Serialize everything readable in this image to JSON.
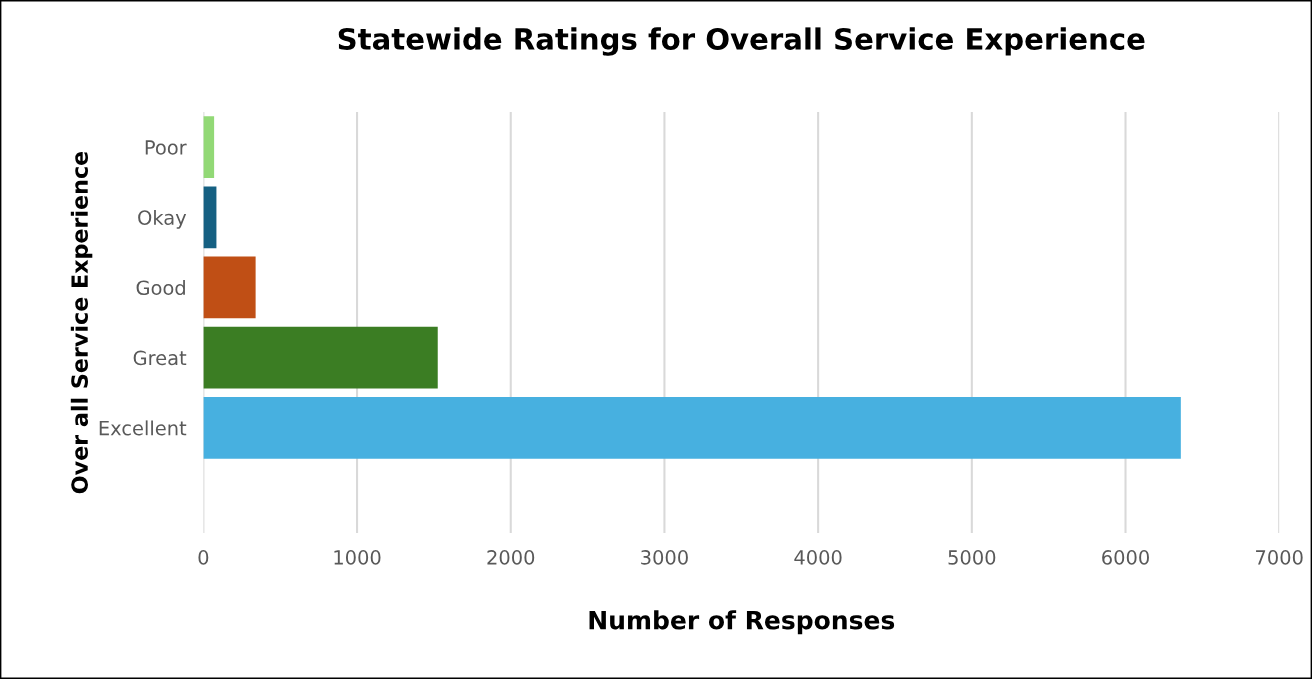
{
  "chart_data": {
    "type": "bar",
    "orientation": "horizontal",
    "title": "Statewide Ratings for Overall Service Experience",
    "xlabel": "Number of Responses",
    "ylabel": "Over all Service Experience",
    "categories": [
      "Poor",
      "Okay",
      "Good",
      "Great",
      "Excellent",
      null
    ],
    "values": [
      70,
      85,
      340,
      1525,
      6360,
      null
    ],
    "colors": [
      "#92d976",
      "#156082",
      "#c04f15",
      "#3b7d23",
      "#47b0e0",
      "#ffffff"
    ],
    "xlim": [
      0,
      7000
    ],
    "xticks": [
      0,
      1000,
      2000,
      3000,
      4000,
      5000,
      6000,
      7000
    ],
    "grid": "x",
    "legend": false
  }
}
